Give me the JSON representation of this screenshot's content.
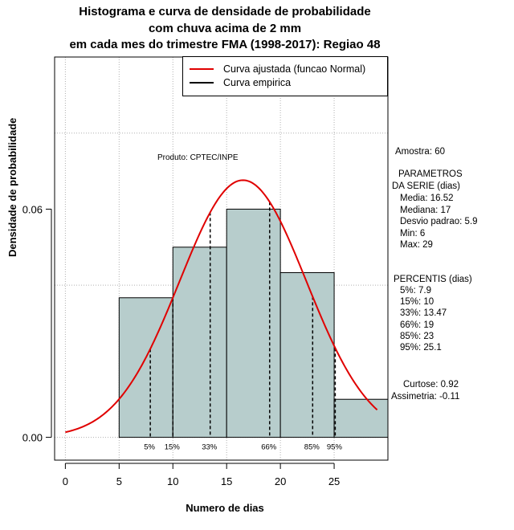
{
  "title": {
    "line1": "Histograma e curva de densidade de probabilidade",
    "line2": "com chuva acima de 2 mm",
    "line3": "em cada mes do trimestre FMA (1998-2017): Regiao 48"
  },
  "legend": {
    "fitted_label": "Curva ajustada (funcao Normal)",
    "empirical_label": "Curva empirica"
  },
  "produto": "Produto: CPTEC/INPE",
  "stats": {
    "amostra": "Amostra: 60",
    "param_title1": "PARAMETROS",
    "param_title2": "DA SERIE (dias)",
    "media": "Media: 16.52",
    "mediana": "Mediana: 17",
    "desvio": "Desvio padrao: 5.9",
    "min": "Min: 6",
    "max": "Max: 29",
    "percentis_title": "PERCENTIS (dias)",
    "p5": "5%: 7.9",
    "p15": "15%: 10",
    "p33": "33%: 13.47",
    "p66": "66%: 19",
    "p85": "85%: 23",
    "p95": "95%: 25.1",
    "curtose": "Curtose: 0.92",
    "assimetria": "Assimetria: -0.11"
  },
  "colors": {
    "bar_fill": "#b7cdcc",
    "fitted_curve": "#e00000",
    "grid": "#b0b0b0"
  },
  "chart_data": {
    "type": "bar",
    "subtype": "histogram",
    "title": "Histograma e curva de densidade de probabilidade com chuva acima de 2 mm em cada mes do trimestre FMA (1998-2017): Regiao 48",
    "xlabel": "Numero de dias",
    "ylabel": "Densidade de probabilidade",
    "xlim": [
      -1,
      30
    ],
    "ylim": [
      -0.006,
      0.1
    ],
    "x_ticks": [
      0,
      5,
      10,
      15,
      20,
      25
    ],
    "x_tick_labels": [
      "0",
      "5",
      "10",
      "15",
      "20",
      "25"
    ],
    "y_ticks": [
      0.0,
      0.06
    ],
    "y_tick_labels": [
      "0.00",
      "0.06"
    ],
    "bins": [
      {
        "from": 5,
        "to": 10,
        "density": 0.0367
      },
      {
        "from": 10,
        "to": 15,
        "density": 0.05
      },
      {
        "from": 15,
        "to": 20,
        "density": 0.06
      },
      {
        "from": 20,
        "to": 25,
        "density": 0.0433
      },
      {
        "from": 25,
        "to": 30,
        "density": 0.01
      }
    ],
    "fitted_normal": {
      "mean": 16.52,
      "sd": 5.9,
      "x_from": 0,
      "x_to": 29
    },
    "percentiles": [
      {
        "label": "5%",
        "value": 7.9
      },
      {
        "label": "15%",
        "value": 10
      },
      {
        "label": "33%",
        "value": 13.47
      },
      {
        "label": "66%",
        "value": 19
      },
      {
        "label": "85%",
        "value": 23
      },
      {
        "label": "95%",
        "value": 25.1
      }
    ],
    "grid": true,
    "legend_position": "top-right"
  }
}
